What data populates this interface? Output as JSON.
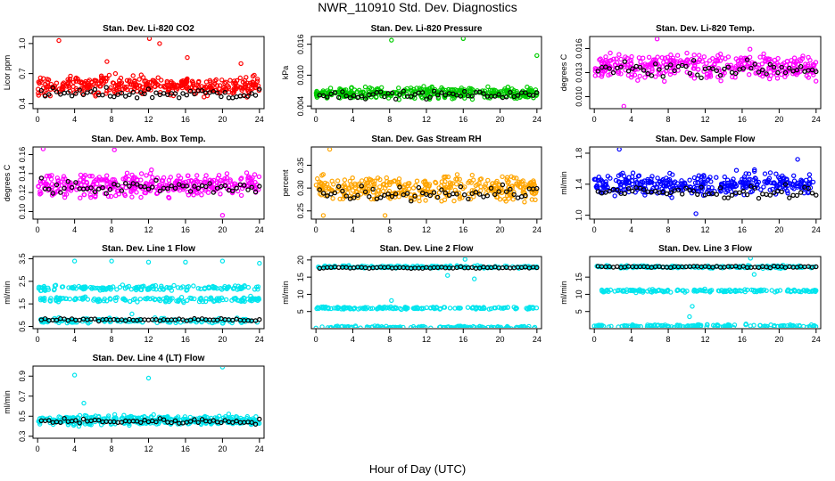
{
  "title": "NWR_110910  Std. Dev. Diagnostics",
  "xlabel": "Hour of Day (UTC)",
  "chart_data": [
    {
      "type": "scatter",
      "title": "Stan. Dev. Li-820 CO2",
      "ylabel": "Licor ppm",
      "color": "#ff0000",
      "yticks": [
        "0.4",
        "0.7",
        "1.0"
      ],
      "yvals": [
        0.4,
        0.7,
        1.0
      ],
      "ylim": [
        0.35,
        1.07
      ],
      "xticks": [
        "0",
        "4",
        "8",
        "12",
        "16",
        "20",
        "24"
      ],
      "xlim": [
        -0.5,
        24.5
      ],
      "base": 0.58,
      "spread": 0.09,
      "bands": [],
      "black_base": 0.5,
      "outliers": [
        [
          2.3,
          1.03
        ],
        [
          12.1,
          1.05
        ],
        [
          13.2,
          1.0
        ],
        [
          7.5,
          0.82
        ],
        [
          16.2,
          0.86
        ],
        [
          22,
          0.8
        ]
      ]
    },
    {
      "type": "scatter",
      "title": "Stan. Dev. Li-820 Pressure",
      "ylabel": "kPa",
      "color": "#00cc00",
      "yticks": [
        "0.004",
        "0.010",
        "0.016"
      ],
      "yvals": [
        0.004,
        0.01,
        0.016
      ],
      "ylim": [
        0.0035,
        0.0175
      ],
      "xticks": [
        "0",
        "4",
        "8",
        "12",
        "16",
        "20",
        "24"
      ],
      "xlim": [
        -0.5,
        24.5
      ],
      "base": 0.0065,
      "spread": 0.0011,
      "bands": [],
      "black_base": 0.0062,
      "outliers": [
        [
          8.2,
          0.0168
        ],
        [
          16.0,
          0.0171
        ],
        [
          24.0,
          0.0138
        ]
      ]
    },
    {
      "type": "scatter",
      "title": "Stan. Dev. Li-820 Temp.",
      "ylabel": "degrees C",
      "color": "#ff00ff",
      "yticks": [
        "0.010",
        "0.013",
        "0.016"
      ],
      "yvals": [
        0.01,
        0.013,
        0.016
      ],
      "ylim": [
        0.0085,
        0.0175
      ],
      "xticks": [
        "0",
        "4",
        "8",
        "12",
        "16",
        "20",
        "24"
      ],
      "xlim": [
        -0.5,
        24.5
      ],
      "base": 0.0138,
      "spread": 0.0015,
      "bands": [],
      "black_base": 0.0135,
      "outliers": [
        [
          3.2,
          0.0088
        ],
        [
          6.8,
          0.0172
        ]
      ]
    },
    {
      "type": "scatter",
      "title": "Stan. Dev. Amb. Box Temp.",
      "ylabel": "degrees C",
      "color": "#ff00ff",
      "yticks": [
        "0.10",
        "0.12",
        "0.14",
        "0.16"
      ],
      "yvals": [
        0.1,
        0.12,
        0.14,
        0.16
      ],
      "ylim": [
        0.092,
        0.168
      ],
      "xticks": [
        "0",
        "4",
        "8",
        "12",
        "16",
        "20",
        "24"
      ],
      "xlim": [
        -0.5,
        24.5
      ],
      "base": 0.128,
      "spread": 0.012,
      "bands": [],
      "black_base": 0.125,
      "outliers": [
        [
          0.6,
          0.166
        ],
        [
          20,
          0.096
        ],
        [
          8.3,
          0.165
        ]
      ]
    },
    {
      "type": "scatter",
      "title": "Stan. Dev. Gas Stream RH",
      "ylabel": "percent",
      "color": "#ffa500",
      "yticks": [
        "0.25",
        "0.30",
        "0.35"
      ],
      "yvals": [
        0.25,
        0.3,
        0.35
      ],
      "ylim": [
        0.232,
        0.39
      ],
      "xticks": [
        "0",
        "4",
        "8",
        "12",
        "16",
        "20",
        "24"
      ],
      "xlim": [
        -0.5,
        24.5
      ],
      "base": 0.3,
      "spread": 0.028,
      "bands": [],
      "black_base": 0.29,
      "outliers": [
        [
          1.5,
          0.385
        ],
        [
          0.8,
          0.24
        ],
        [
          7.5,
          0.24
        ]
      ]
    },
    {
      "type": "scatter",
      "title": "Stan. Dev. Sample Flow",
      "ylabel": "ml/min",
      "color": "#0000ff",
      "yticks": [
        "1.0",
        "1.4",
        "1.8"
      ],
      "yvals": [
        1.0,
        1.4,
        1.8
      ],
      "ylim": [
        0.95,
        1.88
      ],
      "xticks": [
        "0",
        "4",
        "8",
        "12",
        "16",
        "20",
        "24"
      ],
      "xlim": [
        -0.5,
        24.5
      ],
      "base": 1.4,
      "spread": 0.13,
      "bands": [],
      "black_base": 1.3,
      "outliers": [
        [
          2.7,
          1.85
        ],
        [
          11,
          1.02
        ],
        [
          22,
          1.72
        ]
      ]
    },
    {
      "type": "scatter",
      "title": "Stan. Dev. Line 1 Flow",
      "ylabel": "ml/min",
      "color": "#00e5ee",
      "yticks": [
        "0.5",
        "1.5",
        "2.5",
        "3.5"
      ],
      "yvals": [
        0.5,
        1.5,
        2.5,
        3.5
      ],
      "ylim": [
        0.4,
        3.6
      ],
      "xticks": [
        "0",
        "4",
        "8",
        "12",
        "16",
        "20",
        "24"
      ],
      "xlim": [
        -0.5,
        24.5
      ],
      "base": null,
      "spread": 0.1,
      "bands": [
        2.2,
        1.7,
        0.75
      ],
      "black_base": 0.8,
      "outliers": [
        [
          4,
          3.4
        ],
        [
          8,
          3.4
        ],
        [
          12,
          3.35
        ],
        [
          16,
          3.35
        ],
        [
          20,
          3.4
        ],
        [
          24,
          3.3
        ],
        [
          10.2,
          1.05
        ]
      ]
    },
    {
      "type": "scatter",
      "title": "Stan. Dev. Line 2 Flow",
      "ylabel": "ml/min",
      "color": "#00e5ee",
      "yticks": [
        "5",
        "10",
        "15",
        "20"
      ],
      "yvals": [
        5,
        10,
        15,
        20
      ],
      "ylim": [
        0,
        21
      ],
      "xticks": [
        "0",
        "4",
        "8",
        "12",
        "16",
        "20",
        "24"
      ],
      "xlim": [
        -0.5,
        24.5
      ],
      "base": null,
      "spread": 0.35,
      "bands": [
        18,
        6,
        0.4
      ],
      "black_base": 17.8,
      "outliers": [
        [
          8.2,
          8.2
        ],
        [
          16.2,
          20.2
        ],
        [
          17.2,
          14.5
        ],
        [
          14.3,
          15.5
        ]
      ]
    },
    {
      "type": "scatter",
      "title": "Stan. Dev. Line 3 Flow",
      "ylabel": "ml/min",
      "color": "#00e5ee",
      "yticks": [
        "5",
        "10",
        "15"
      ],
      "yvals": [
        5,
        10,
        15
      ],
      "ylim": [
        0,
        21
      ],
      "xticks": [
        "0",
        "4",
        "8",
        "12",
        "16",
        "20",
        "24"
      ],
      "xlim": [
        -0.5,
        24.5
      ],
      "base": null,
      "spread": 0.4,
      "bands": [
        18,
        11,
        0.8
      ],
      "black_base": 18,
      "outliers": [
        [
          10.3,
          3.5
        ],
        [
          10.6,
          6.5
        ],
        [
          16.9,
          20.5
        ],
        [
          17.3,
          15.8
        ]
      ]
    },
    {
      "type": "scatter",
      "title": "Stan. Dev. Line 4 (LT) Flow",
      "ylabel": "ml/min",
      "color": "#00e5ee",
      "yticks": [
        "0.3",
        "0.5",
        "0.7",
        "0.9"
      ],
      "yvals": [
        0.3,
        0.5,
        0.7,
        0.9
      ],
      "ylim": [
        0.28,
        1.0
      ],
      "xticks": [
        "0",
        "4",
        "8",
        "12",
        "16",
        "20",
        "24"
      ],
      "xlim": [
        -0.5,
        24.5
      ],
      "base": 0.46,
      "spread": 0.045,
      "bands": [],
      "black_base": 0.45,
      "outliers": [
        [
          4,
          0.91
        ],
        [
          12,
          0.88
        ],
        [
          20,
          0.99
        ],
        [
          5,
          0.63
        ]
      ]
    }
  ]
}
